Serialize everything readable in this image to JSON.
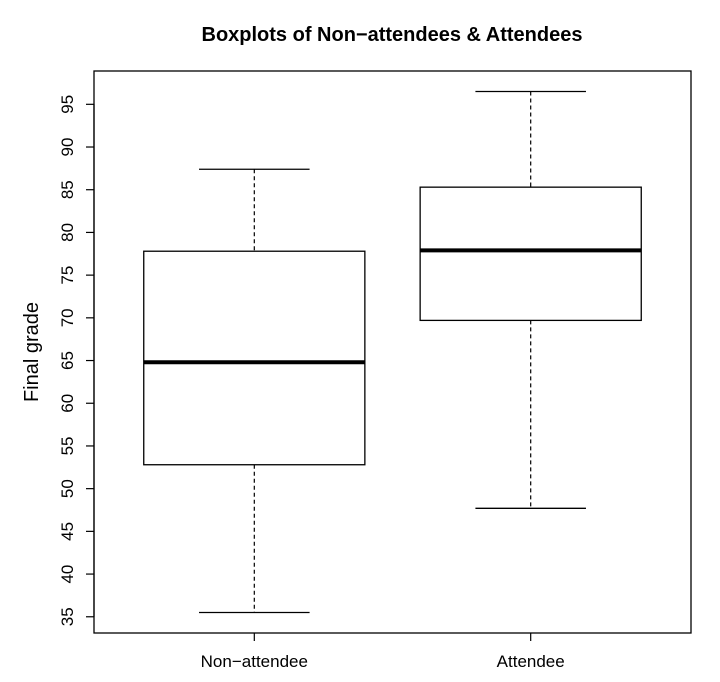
{
  "chart_data": {
    "type": "boxplot",
    "title": "Boxplots of Non−attendees & Attendees",
    "xlabel": "",
    "ylabel": "Final grade",
    "ylim": [
      33.1,
      98.9
    ],
    "yticks": [
      35,
      40,
      45,
      50,
      55,
      60,
      65,
      70,
      75,
      80,
      85,
      90,
      95
    ],
    "grid": false,
    "categories": [
      "Non−attendee",
      "Attendee"
    ],
    "series": [
      {
        "name": "Non−attendee",
        "min": 35.5,
        "q1": 52.8,
        "median": 64.8,
        "q3": 77.8,
        "max": 87.4
      },
      {
        "name": "Attendee",
        "min": 47.7,
        "q1": 69.7,
        "median": 77.9,
        "q3": 85.3,
        "max": 96.5
      }
    ]
  }
}
